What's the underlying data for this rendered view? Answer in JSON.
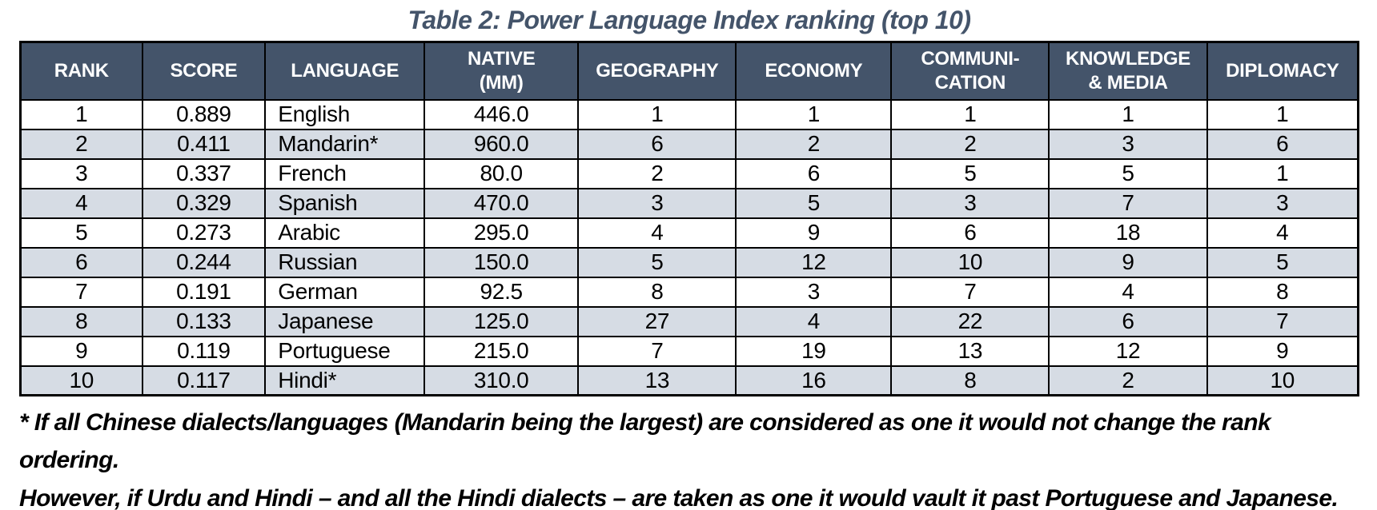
{
  "title": "Table 2: Power Language Index ranking (top 10)",
  "colors": {
    "header_bg": "#44546A",
    "header_text": "#FFFFFF",
    "row_alt_bg": "#D6DCE4",
    "row_bg": "#FFFFFF",
    "border": "#000000",
    "title_color": "#44546A",
    "body_text": "#000000"
  },
  "table": {
    "columns": [
      {
        "key": "rank",
        "label": "RANK"
      },
      {
        "key": "score",
        "label": "SCORE"
      },
      {
        "key": "language",
        "label": "LANGUAGE"
      },
      {
        "key": "native_mm",
        "label": "NATIVE\n(MM)"
      },
      {
        "key": "geography",
        "label": "GEOGRAPHY"
      },
      {
        "key": "economy",
        "label": "ECONOMY"
      },
      {
        "key": "communication",
        "label": "COMMUNI-\nCATION"
      },
      {
        "key": "knowledge_media",
        "label": "KNOWLEDGE\n& MEDIA"
      },
      {
        "key": "diplomacy",
        "label": "DIPLOMACY"
      }
    ],
    "rows": [
      {
        "rank": "1",
        "score": "0.889",
        "language": "English",
        "native_mm": "446.0",
        "geography": "1",
        "economy": "1",
        "communication": "1",
        "knowledge_media": "1",
        "diplomacy": "1"
      },
      {
        "rank": "2",
        "score": "0.411",
        "language": "Mandarin*",
        "native_mm": "960.0",
        "geography": "6",
        "economy": "2",
        "communication": "2",
        "knowledge_media": "3",
        "diplomacy": "6"
      },
      {
        "rank": "3",
        "score": "0.337",
        "language": "French",
        "native_mm": "80.0",
        "geography": "2",
        "economy": "6",
        "communication": "5",
        "knowledge_media": "5",
        "diplomacy": "1"
      },
      {
        "rank": "4",
        "score": "0.329",
        "language": "Spanish",
        "native_mm": "470.0",
        "geography": "3",
        "economy": "5",
        "communication": "3",
        "knowledge_media": "7",
        "diplomacy": "3"
      },
      {
        "rank": "5",
        "score": "0.273",
        "language": "Arabic",
        "native_mm": "295.0",
        "geography": "4",
        "economy": "9",
        "communication": "6",
        "knowledge_media": "18",
        "diplomacy": "4"
      },
      {
        "rank": "6",
        "score": "0.244",
        "language": "Russian",
        "native_mm": "150.0",
        "geography": "5",
        "economy": "12",
        "communication": "10",
        "knowledge_media": "9",
        "diplomacy": "5"
      },
      {
        "rank": "7",
        "score": "0.191",
        "language": "German",
        "native_mm": "92.5",
        "geography": "8",
        "economy": "3",
        "communication": "7",
        "knowledge_media": "4",
        "diplomacy": "8"
      },
      {
        "rank": "8",
        "score": "0.133",
        "language": "Japanese",
        "native_mm": "125.0",
        "geography": "27",
        "economy": "4",
        "communication": "22",
        "knowledge_media": "6",
        "diplomacy": "7"
      },
      {
        "rank": "9",
        "score": "0.119",
        "language": "Portuguese",
        "native_mm": "215.0",
        "geography": "7",
        "economy": "19",
        "communication": "13",
        "knowledge_media": "12",
        "diplomacy": "9"
      },
      {
        "rank": "10",
        "score": "0.117",
        "language": "Hindi*",
        "native_mm": "310.0",
        "geography": "13",
        "economy": "16",
        "communication": "8",
        "knowledge_media": "2",
        "diplomacy": "10"
      }
    ]
  },
  "footnote": {
    "line1": "* If all Chinese dialects/languages (Mandarin being the largest) are considered as one it would not change the rank ordering.",
    "line2": "However, if Urdu and Hindi – and all the Hindi dialects – are taken as one it would vault it past Portuguese and Japanese."
  }
}
